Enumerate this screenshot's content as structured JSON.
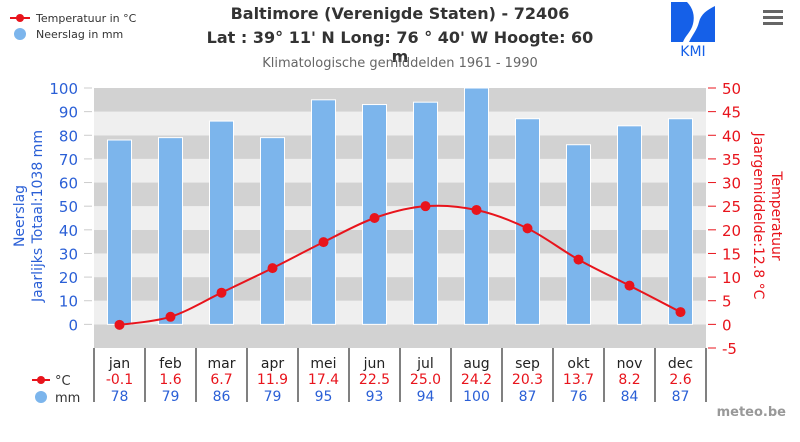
{
  "header": {
    "title_line1": "Baltimore (Verenigde Staten) - 72406",
    "title_line2": "Lat : 39° 11' N Long: 76 ° 40' W Hoogte: 60 m",
    "subtitle": "Klimatologische gemiddelden 1961 - 1990",
    "logo_text": "KMI",
    "menu_icon": "hamburger-menu-icon"
  },
  "legend": {
    "temperature": "Temperatuur in °C",
    "precipitation": "Neerslag in mm"
  },
  "table": {
    "temp_label": "°C",
    "precip_label": "mm"
  },
  "credit": "meteo.be",
  "colors": {
    "temperature": "#e8141c",
    "precipitation_bar": "#7cb5ec",
    "precip_axis": "#2a5fd6",
    "band_dark": "#d2d2d2",
    "band_light": "#efefef",
    "logo": "#1560e8"
  },
  "chart_data": {
    "type": "bar+line",
    "title": "Baltimore (Verenigde Staten) - 72406",
    "subtitle": "Klimatologische gemiddelden 1961 - 1990",
    "categories": [
      "jan",
      "feb",
      "mar",
      "apr",
      "mei",
      "jun",
      "jul",
      "aug",
      "sep",
      "okt",
      "nov",
      "dec"
    ],
    "series": [
      {
        "name": "Neerslag in mm",
        "type": "bar",
        "axis": "left",
        "values": [
          78,
          79,
          86,
          79,
          95,
          93,
          94,
          100,
          87,
          76,
          84,
          87
        ]
      },
      {
        "name": "Temperatuur in °C",
        "type": "line",
        "axis": "right",
        "values": [
          -0.1,
          1.6,
          6.7,
          11.9,
          17.4,
          22.5,
          25.0,
          24.2,
          20.3,
          13.7,
          8.2,
          2.6
        ]
      }
    ],
    "ylabel_left": [
      "Neerslag",
      "Jaarlijks Totaal:1038 mm"
    ],
    "ylabel_right": [
      "Temperatuur",
      "Jaargemiddelde:12.8 °C"
    ],
    "yleft_ticks": [
      0,
      10,
      20,
      30,
      40,
      50,
      60,
      70,
      80,
      90,
      100
    ],
    "yright_ticks": [
      -5,
      0,
      5,
      10,
      15,
      20,
      25,
      30,
      35,
      40,
      45,
      50
    ],
    "ylim_left": [
      -10,
      100
    ],
    "ylim_right": [
      -5,
      50
    ],
    "grid": "alternating bands",
    "legend_position": "top-left"
  }
}
